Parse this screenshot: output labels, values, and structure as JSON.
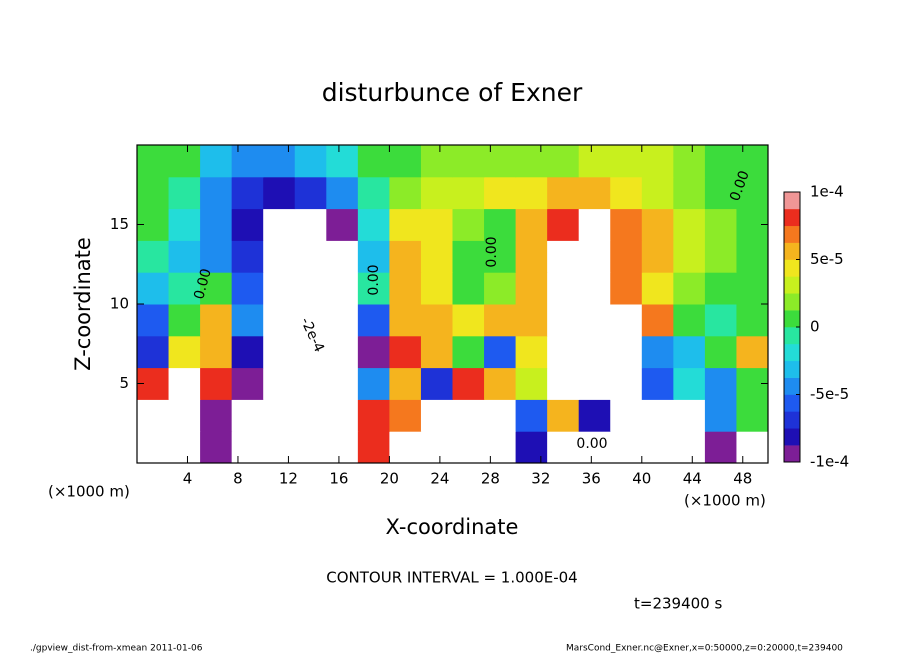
{
  "chart_data": {
    "type": "contour",
    "title": "disturbunce of Exner",
    "xlabel": "X-coordinate",
    "ylabel": "Z-coordinate",
    "x_unit_label": "(×1000 m)",
    "contour_interval_text": "CONTOUR INTERVAL = 1.000E-04",
    "time_text": "t=239400 s",
    "footer_left": "./gpview_dist-from-xmean  2011-01-06",
    "footer_right": "MarsCond_Exner.nc@Exner,x=0:50000,z=0:20000,t=239400",
    "xlim": [
      0,
      50
    ],
    "ylim": [
      0,
      20
    ],
    "xticks": [
      4,
      8,
      12,
      16,
      20,
      24,
      28,
      32,
      36,
      40,
      44,
      48
    ],
    "yticks": [
      5,
      10,
      15
    ],
    "clim": [
      -0.0001,
      0.0001
    ],
    "cticks": [
      {
        "value": 0.0001,
        "label": "1e-4"
      },
      {
        "value": 5e-05,
        "label": "5e-5"
      },
      0,
      {
        "value": -5e-05,
        "label": "-5e-5"
      },
      {
        "value": -0.0001,
        "label": "-1e-4"
      }
    ],
    "colors": [
      "#7d1e96",
      "#1e0fb4",
      "#1e32d7",
      "#1e5af0",
      "#1e8cf0",
      "#1ebeeb",
      "#23dcd7",
      "#28e6a0",
      "#3cdc3c",
      "#8ceb28",
      "#c8f01e",
      "#f0e61e",
      "#f5b41e",
      "#f5781e",
      "#eb2d1e",
      "#f09696"
    ],
    "annotations": [
      "0.00",
      "0.00",
      "0.00",
      "0.00",
      "0.00",
      "-2e-4"
    ],
    "x": [
      1.25,
      3.75,
      6.25,
      8.75,
      11.25,
      13.75,
      16.25,
      18.75,
      21.25,
      23.75,
      26.25,
      28.75,
      31.25,
      33.75,
      36.25,
      38.75,
      41.25,
      43.75,
      46.25,
      48.75
    ],
    "z": [
      1,
      3,
      5,
      7,
      9,
      11,
      13,
      15,
      17,
      19
    ],
    "values": [
      [
        -0.0003,
        0.0003,
        -9e-05,
        -0.0003,
        -0.0003,
        0.0003,
        0.0003,
        8e-05,
        0.0003,
        0.0003,
        0.0003,
        0.0003,
        -8e-05,
        0.0003,
        0.0003,
        0.0003,
        0.0003,
        -0.0003,
        -9e-05,
        -0.0003
      ],
      [
        -0.0003,
        0.0003,
        -9e-05,
        -0.0003,
        -0.0003,
        0.0003,
        0.0003,
        8e-05,
        7e-05,
        0.0003,
        0.0003,
        0.0003,
        -6e-05,
        5e-05,
        -8e-05,
        0.0003,
        -0.0003,
        -0.0003,
        -5e-05,
        0
      ],
      [
        8e-05,
        0.0003,
        8e-05,
        -9e-05,
        0.0003,
        0.0003,
        0.0003,
        -4e-05,
        6e-05,
        -7e-05,
        8e-05,
        6e-05,
        3e-05,
        0.0003,
        0.0003,
        0.0003,
        -6e-05,
        -2e-05,
        -4e-05,
        0
      ],
      [
        -7e-05,
        4e-05,
        5e-05,
        -8e-05,
        0.0003,
        0.0003,
        0.0003,
        -9e-05,
        8e-05,
        5e-05,
        1e-05,
        -6e-05,
        4e-05,
        0.0003,
        0.0003,
        0.0003,
        -5e-05,
        -3e-05,
        0,
        5e-05
      ],
      [
        -6e-05,
        0,
        6e-05,
        -5e-05,
        0.0003,
        0.0003,
        0.0003,
        -6e-05,
        5e-05,
        5e-05,
        4e-05,
        5e-05,
        6e-05,
        0.0003,
        0.0003,
        0.0003,
        7e-05,
        0,
        -1e-05,
        0
      ],
      [
        -3e-05,
        -1e-05,
        1e-05,
        -6e-05,
        0.0003,
        0.0003,
        0.0003,
        -1e-05,
        6e-05,
        4e-05,
        1e-05,
        2e-05,
        6e-05,
        0.0003,
        0.0003,
        7e-05,
        4e-05,
        2e-05,
        1e-05,
        1e-05
      ],
      [
        -1e-05,
        -3e-05,
        -5e-05,
        -7e-05,
        0.0003,
        0.0003,
        0.0003,
        -3e-05,
        5e-05,
        4e-05,
        1e-05,
        0,
        6e-05,
        0.0003,
        0.0003,
        7e-05,
        5e-05,
        3e-05,
        2e-05,
        1e-05
      ],
      [
        0,
        -2e-05,
        -4e-05,
        -8e-05,
        0.0003,
        0.0003,
        -9e-05,
        -2e-05,
        4e-05,
        4e-05,
        2e-05,
        1e-05,
        6e-05,
        8e-05,
        0.0003,
        7e-05,
        5e-05,
        3e-05,
        2e-05,
        1e-05
      ],
      [
        0,
        -1e-05,
        -4e-05,
        -7e-05,
        -8e-05,
        -7e-05,
        -5e-05,
        -1e-05,
        2e-05,
        3e-05,
        3e-05,
        4e-05,
        4e-05,
        5e-05,
        5e-05,
        4e-05,
        3e-05,
        2e-05,
        1e-05,
        1e-05
      ],
      [
        1e-05,
        0,
        -3e-05,
        -4e-05,
        -4e-05,
        -3e-05,
        -2e-05,
        0,
        1e-05,
        2e-05,
        2e-05,
        2e-05,
        2e-05,
        2e-05,
        3e-05,
        3e-05,
        3e-05,
        2e-05,
        1e-05,
        1e-05
      ]
    ]
  }
}
